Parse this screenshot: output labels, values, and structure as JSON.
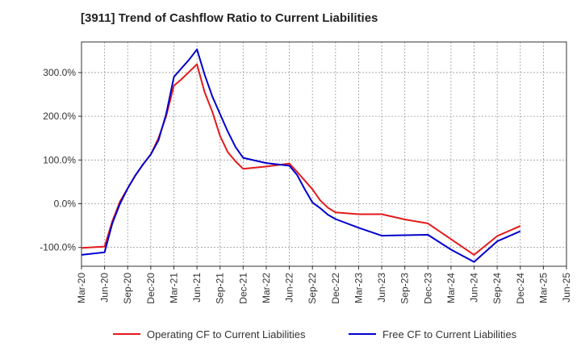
{
  "chart_data": {
    "type": "line",
    "title": "[3911]  Trend of Cashflow Ratio to Current Liabilities",
    "xlabel": "",
    "ylabel": "",
    "x_ticks": [
      "Mar-20",
      "Jun-20",
      "Sep-20",
      "Dec-20",
      "Mar-21",
      "Jun-21",
      "Sep-21",
      "Dec-21",
      "Mar-22",
      "Jun-22",
      "Sep-22",
      "Dec-22",
      "Mar-23",
      "Jun-23",
      "Sep-23",
      "Dec-23",
      "Mar-24",
      "Jun-24",
      "Sep-24",
      "Dec-24",
      "Mar-25",
      "Jun-25"
    ],
    "y_ticks": [
      {
        "value": 300,
        "label": "300.0%"
      },
      {
        "value": 200,
        "label": "200.0%"
      },
      {
        "value": 100,
        "label": "100.0%"
      },
      {
        "value": 0,
        "label": "0.0%"
      },
      {
        "value": -100,
        "label": "-100.0%"
      }
    ],
    "ylim": [
      -143,
      370
    ],
    "grid": true,
    "legend_position": "bottom",
    "series": [
      {
        "name": "Operating CF to Current Liabilities",
        "color": "#e31a1c",
        "x": [
          "Mar-20",
          "Jun-20",
          "Jul-20",
          "Aug-20",
          "Sep-20",
          "Oct-20",
          "Nov-20",
          "Dec-20",
          "Jan-21",
          "Feb-21",
          "Mar-21",
          "Apr-21",
          "May-21",
          "Jun-21",
          "Jul-21",
          "Aug-21",
          "Sep-21",
          "Oct-21",
          "Nov-21",
          "Dec-21",
          "Mar-22",
          "Jun-22",
          "Jul-22",
          "Aug-22",
          "Sep-22",
          "Oct-22",
          "Nov-22",
          "Dec-22",
          "Mar-23",
          "Jun-23",
          "Sep-23",
          "Dec-23",
          "Mar-24",
          "Jun-24",
          "Sep-24",
          "Dec-24"
        ],
        "values": [
          -101,
          -98,
          -40,
          5,
          35,
          65,
          90,
          113,
          150,
          200,
          270,
          285,
          302,
          319,
          255,
          210,
          155,
          118,
          97,
          80,
          85,
          92,
          73,
          53,
          33,
          8,
          -9,
          -20,
          -24,
          -24,
          -36,
          -45,
          -81,
          -117,
          -74,
          -51
        ]
      },
      {
        "name": "Free CF to Current Liabilities",
        "color": "#0000cc",
        "x": [
          "Mar-20",
          "Jun-20",
          "Jul-20",
          "Aug-20",
          "Sep-20",
          "Oct-20",
          "Nov-20",
          "Dec-20",
          "Jan-21",
          "Feb-21",
          "Mar-21",
          "Apr-21",
          "May-21",
          "Jun-21",
          "Jul-21",
          "Aug-21",
          "Sep-21",
          "Oct-21",
          "Nov-21",
          "Dec-21",
          "Mar-22",
          "Jun-22",
          "Jul-22",
          "Aug-22",
          "Sep-22",
          "Oct-22",
          "Nov-22",
          "Dec-22",
          "Mar-23",
          "Jun-23",
          "Sep-23",
          "Dec-23",
          "Mar-24",
          "Jun-24",
          "Sep-24",
          "Dec-24"
        ],
        "values": [
          -117,
          -111,
          -45,
          0,
          35,
          65,
          90,
          113,
          145,
          205,
          290,
          310,
          330,
          353,
          295,
          245,
          205,
          165,
          130,
          105,
          93,
          87,
          66,
          33,
          3,
          -10,
          -25,
          -35,
          -55,
          -73,
          -72,
          -71,
          -105,
          -133,
          -86,
          -63
        ]
      }
    ]
  }
}
